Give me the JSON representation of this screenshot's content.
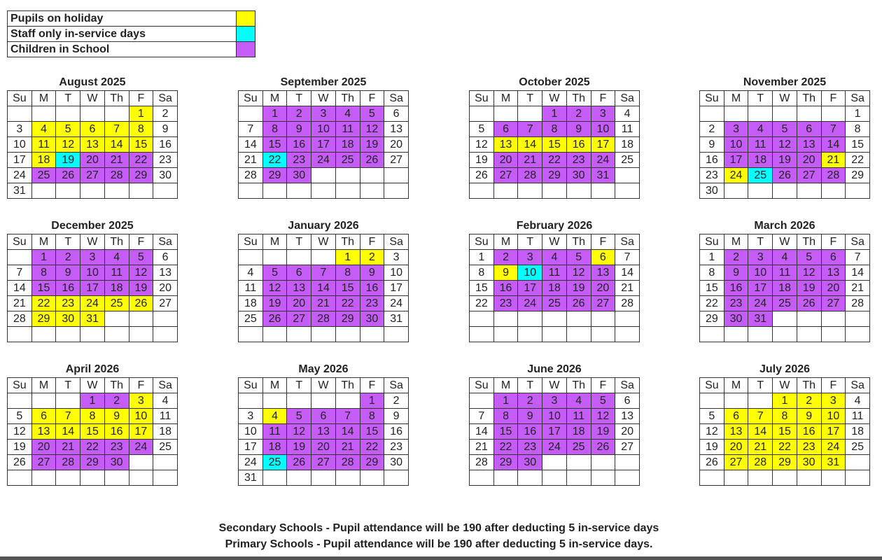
{
  "colors": {
    "holiday": "#ffff00",
    "inservice": "#00ffff",
    "school": "#c65cf7"
  },
  "legend": [
    {
      "label": "Pupils on holiday",
      "key": "holiday"
    },
    {
      "label": "Staff only in-service days",
      "key": "inservice"
    },
    {
      "label": "Children in School",
      "key": "school"
    }
  ],
  "weekdays": [
    "Su",
    "M",
    "T",
    "W",
    "Th",
    "F",
    "Sa"
  ],
  "months": [
    {
      "title": "August 2025",
      "weeks": [
        [
          0,
          0,
          0,
          0,
          0,
          1,
          2
        ],
        [
          3,
          4,
          5,
          6,
          7,
          8,
          9
        ],
        [
          10,
          11,
          12,
          13,
          14,
          15,
          16
        ],
        [
          17,
          18,
          19,
          20,
          21,
          22,
          23
        ],
        [
          24,
          25,
          26,
          27,
          28,
          29,
          30
        ],
        [
          31,
          0,
          0,
          0,
          0,
          0,
          0
        ]
      ],
      "holiday": [
        1,
        4,
        5,
        6,
        7,
        8,
        11,
        12,
        13,
        14,
        15,
        18
      ],
      "inservice": [
        19
      ],
      "school": [
        20,
        21,
        22,
        25,
        26,
        27,
        28,
        29
      ]
    },
    {
      "title": "September 2025",
      "weeks": [
        [
          0,
          1,
          2,
          3,
          4,
          5,
          6
        ],
        [
          7,
          8,
          9,
          10,
          11,
          12,
          13
        ],
        [
          14,
          15,
          16,
          17,
          18,
          19,
          20
        ],
        [
          21,
          22,
          23,
          24,
          25,
          26,
          27
        ],
        [
          28,
          29,
          30,
          0,
          0,
          0,
          0
        ],
        [
          0,
          0,
          0,
          0,
          0,
          0,
          0
        ]
      ],
      "holiday": [],
      "inservice": [
        22
      ],
      "school": [
        1,
        2,
        3,
        4,
        5,
        8,
        9,
        10,
        11,
        12,
        15,
        16,
        17,
        18,
        19,
        23,
        24,
        25,
        26,
        29,
        30
      ]
    },
    {
      "title": "October 2025",
      "weeks": [
        [
          0,
          0,
          0,
          1,
          2,
          3,
          4
        ],
        [
          5,
          6,
          7,
          8,
          9,
          10,
          11
        ],
        [
          12,
          13,
          14,
          15,
          16,
          17,
          18
        ],
        [
          19,
          20,
          21,
          22,
          23,
          24,
          25
        ],
        [
          26,
          27,
          28,
          29,
          30,
          31,
          0
        ],
        [
          0,
          0,
          0,
          0,
          0,
          0,
          0
        ]
      ],
      "holiday": [
        13,
        14,
        15,
        16,
        17
      ],
      "inservice": [],
      "school": [
        1,
        2,
        3,
        6,
        7,
        8,
        9,
        10,
        20,
        21,
        22,
        23,
        24,
        27,
        28,
        29,
        30,
        31
      ]
    },
    {
      "title": "November 2025",
      "weeks": [
        [
          0,
          0,
          0,
          0,
          0,
          0,
          1
        ],
        [
          2,
          3,
          4,
          5,
          6,
          7,
          8
        ],
        [
          9,
          10,
          11,
          12,
          13,
          14,
          15
        ],
        [
          16,
          17,
          18,
          19,
          20,
          21,
          22
        ],
        [
          23,
          24,
          25,
          26,
          27,
          28,
          29
        ],
        [
          30,
          0,
          0,
          0,
          0,
          0,
          0
        ]
      ],
      "holiday": [
        21,
        24
      ],
      "inservice": [
        25
      ],
      "school": [
        3,
        4,
        5,
        6,
        7,
        10,
        11,
        12,
        13,
        14,
        17,
        18,
        19,
        20,
        26,
        27,
        28
      ]
    },
    {
      "title": "December 2025",
      "weeks": [
        [
          0,
          1,
          2,
          3,
          4,
          5,
          6
        ],
        [
          7,
          8,
          9,
          10,
          11,
          12,
          13
        ],
        [
          14,
          15,
          16,
          17,
          18,
          19,
          20
        ],
        [
          21,
          22,
          23,
          24,
          25,
          26,
          27
        ],
        [
          28,
          29,
          30,
          31,
          0,
          0,
          0
        ],
        [
          0,
          0,
          0,
          0,
          0,
          0,
          0
        ]
      ],
      "holiday": [
        22,
        23,
        24,
        25,
        26,
        29,
        30,
        31
      ],
      "inservice": [],
      "school": [
        1,
        2,
        3,
        4,
        5,
        8,
        9,
        10,
        11,
        12,
        15,
        16,
        17,
        18,
        19
      ]
    },
    {
      "title": "January 2026",
      "weeks": [
        [
          0,
          0,
          0,
          0,
          1,
          2,
          3
        ],
        [
          4,
          5,
          6,
          7,
          8,
          9,
          10
        ],
        [
          11,
          12,
          13,
          14,
          15,
          16,
          17
        ],
        [
          18,
          19,
          20,
          21,
          22,
          23,
          24
        ],
        [
          25,
          26,
          27,
          28,
          29,
          30,
          31
        ],
        [
          0,
          0,
          0,
          0,
          0,
          0,
          0
        ]
      ],
      "holiday": [
        1,
        2
      ],
      "inservice": [],
      "school": [
        5,
        6,
        7,
        8,
        9,
        12,
        13,
        14,
        15,
        16,
        19,
        20,
        21,
        22,
        23,
        26,
        27,
        28,
        29,
        30
      ]
    },
    {
      "title": "February 2026",
      "weeks": [
        [
          1,
          2,
          3,
          4,
          5,
          6,
          7
        ],
        [
          8,
          9,
          10,
          11,
          12,
          13,
          14
        ],
        [
          15,
          16,
          17,
          18,
          19,
          20,
          21
        ],
        [
          22,
          23,
          24,
          25,
          26,
          27,
          28
        ],
        [
          0,
          0,
          0,
          0,
          0,
          0,
          0
        ],
        [
          0,
          0,
          0,
          0,
          0,
          0,
          0
        ]
      ],
      "holiday": [
        6,
        9
      ],
      "inservice": [
        10
      ],
      "school": [
        2,
        3,
        4,
        5,
        11,
        12,
        13,
        16,
        17,
        18,
        19,
        20,
        23,
        24,
        25,
        26,
        27
      ]
    },
    {
      "title": "March 2026",
      "weeks": [
        [
          1,
          2,
          3,
          4,
          5,
          6,
          7
        ],
        [
          8,
          9,
          10,
          11,
          12,
          13,
          14
        ],
        [
          15,
          16,
          17,
          18,
          19,
          20,
          21
        ],
        [
          22,
          23,
          24,
          25,
          26,
          27,
          28
        ],
        [
          29,
          30,
          31,
          0,
          0,
          0,
          0
        ],
        [
          0,
          0,
          0,
          0,
          0,
          0,
          0
        ]
      ],
      "holiday": [],
      "inservice": [],
      "school": [
        2,
        3,
        4,
        5,
        6,
        9,
        10,
        11,
        12,
        13,
        16,
        17,
        18,
        19,
        20,
        23,
        24,
        25,
        26,
        27,
        30,
        31
      ]
    },
    {
      "title": "April 2026",
      "weeks": [
        [
          0,
          0,
          0,
          1,
          2,
          3,
          4
        ],
        [
          5,
          6,
          7,
          8,
          9,
          10,
          11
        ],
        [
          12,
          13,
          14,
          15,
          16,
          17,
          18
        ],
        [
          19,
          20,
          21,
          22,
          23,
          24,
          25
        ],
        [
          26,
          27,
          28,
          29,
          30,
          0,
          0
        ],
        [
          0,
          0,
          0,
          0,
          0,
          0,
          0
        ]
      ],
      "holiday": [
        3,
        6,
        7,
        8,
        9,
        10,
        13,
        14,
        15,
        16,
        17
      ],
      "inservice": [],
      "school": [
        1,
        2,
        20,
        21,
        22,
        23,
        24,
        27,
        28,
        29,
        30
      ]
    },
    {
      "title": "May 2026",
      "weeks": [
        [
          0,
          0,
          0,
          0,
          0,
          1,
          2
        ],
        [
          3,
          4,
          5,
          6,
          7,
          8,
          9
        ],
        [
          10,
          11,
          12,
          13,
          14,
          15,
          16
        ],
        [
          17,
          18,
          19,
          20,
          21,
          22,
          23
        ],
        [
          24,
          25,
          26,
          27,
          28,
          29,
          30
        ],
        [
          31,
          0,
          0,
          0,
          0,
          0,
          0
        ]
      ],
      "holiday": [
        4
      ],
      "inservice": [
        25
      ],
      "school": [
        1,
        5,
        6,
        7,
        8,
        11,
        12,
        13,
        14,
        15,
        18,
        19,
        20,
        21,
        22,
        26,
        27,
        28,
        29
      ]
    },
    {
      "title": "June 2026",
      "weeks": [
        [
          0,
          1,
          2,
          3,
          4,
          5,
          6
        ],
        [
          7,
          8,
          9,
          10,
          11,
          12,
          13
        ],
        [
          14,
          15,
          16,
          17,
          18,
          19,
          20
        ],
        [
          21,
          22,
          23,
          24,
          25,
          26,
          27
        ],
        [
          28,
          29,
          30,
          0,
          0,
          0,
          0
        ],
        [
          0,
          0,
          0,
          0,
          0,
          0,
          0
        ]
      ],
      "holiday": [],
      "inservice": [],
      "school": [
        1,
        2,
        3,
        4,
        5,
        8,
        9,
        10,
        11,
        12,
        15,
        16,
        17,
        18,
        19,
        22,
        23,
        24,
        25,
        26,
        29,
        30
      ]
    },
    {
      "title": "July 2026",
      "weeks": [
        [
          0,
          0,
          0,
          1,
          2,
          3,
          4
        ],
        [
          5,
          6,
          7,
          8,
          9,
          10,
          11
        ],
        [
          12,
          13,
          14,
          15,
          16,
          17,
          18
        ],
        [
          19,
          20,
          21,
          22,
          23,
          24,
          25
        ],
        [
          26,
          27,
          28,
          29,
          30,
          31,
          0
        ],
        [
          0,
          0,
          0,
          0,
          0,
          0,
          0
        ]
      ],
      "holiday": [
        1,
        2,
        3,
        6,
        7,
        8,
        9,
        10,
        13,
        14,
        15,
        16,
        17,
        20,
        21,
        22,
        23,
        24,
        27,
        28,
        29,
        30,
        31
      ],
      "inservice": [],
      "school": []
    }
  ],
  "footer": [
    "Secondary Schools - Pupil attendance will be 190 after deducting 5 in-service days",
    "Primary Schools - Pupil attendance will be 190 after deducting 5 in-service days."
  ]
}
